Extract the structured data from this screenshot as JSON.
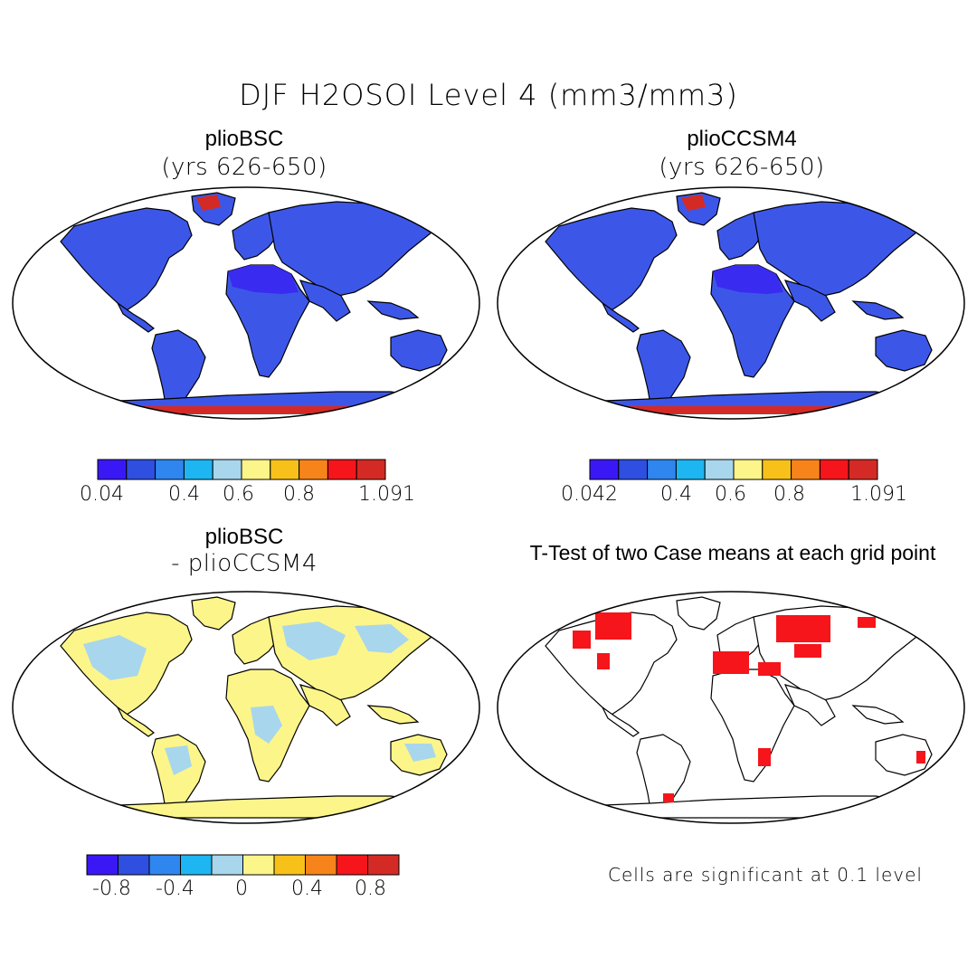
{
  "figure": {
    "title": "DJF H2OSOI Level 4 (mm3/mm3)"
  },
  "panels": [
    {
      "id": "p1",
      "title": "plioBSC",
      "subtitle": "(yrs 626-650)"
    },
    {
      "id": "p2",
      "title": "plioCCSM4",
      "subtitle": "(yrs 626-650)"
    },
    {
      "id": "p3",
      "title": "plioBSC",
      "subtitle": "- plioCCSM4"
    },
    {
      "id": "p4",
      "title": "T-Test of two Case means at each grid point",
      "subtitle": ""
    }
  ],
  "colorbars": [
    {
      "id": "cb1",
      "colors": [
        "#3a18f5",
        "#2e4fe0",
        "#2f86ef",
        "#1db6f2",
        "#a8d6ec",
        "#fcf58a",
        "#f8c11a",
        "#f7841a",
        "#f5151a",
        "#d42a25"
      ],
      "tick_labels": [
        "0.04",
        "0.4",
        "0.6",
        "0.8",
        "1.091"
      ]
    },
    {
      "id": "cb2",
      "colors": [
        "#3a18f5",
        "#2e4fe0",
        "#2f86ef",
        "#1db6f2",
        "#a8d6ec",
        "#fcf58a",
        "#f8c11a",
        "#f7841a",
        "#f5151a",
        "#d42a25"
      ],
      "tick_labels": [
        "0.042",
        "0.4",
        "0.6",
        "0.8",
        "1.091"
      ]
    },
    {
      "id": "cb3",
      "colors": [
        "#3a18f5",
        "#2e4fe0",
        "#2f86ef",
        "#1db6f2",
        "#a8d6ec",
        "#fcf58a",
        "#f8c11a",
        "#f7841a",
        "#f5151a",
        "#d42a25"
      ],
      "tick_labels": [
        "-0.8",
        "-0.4",
        "0",
        "0.4",
        "0.8"
      ]
    }
  ],
  "note": "Cells are significant at 0.1 level",
  "colors": {
    "land_mean": "#3c57e8",
    "sahara": "#3a2bf0",
    "ice_cap": "#d42a25",
    "diff_pos": "#fcf58a",
    "diff_neg": "#a8d6ec",
    "signif": "#f5151a"
  }
}
